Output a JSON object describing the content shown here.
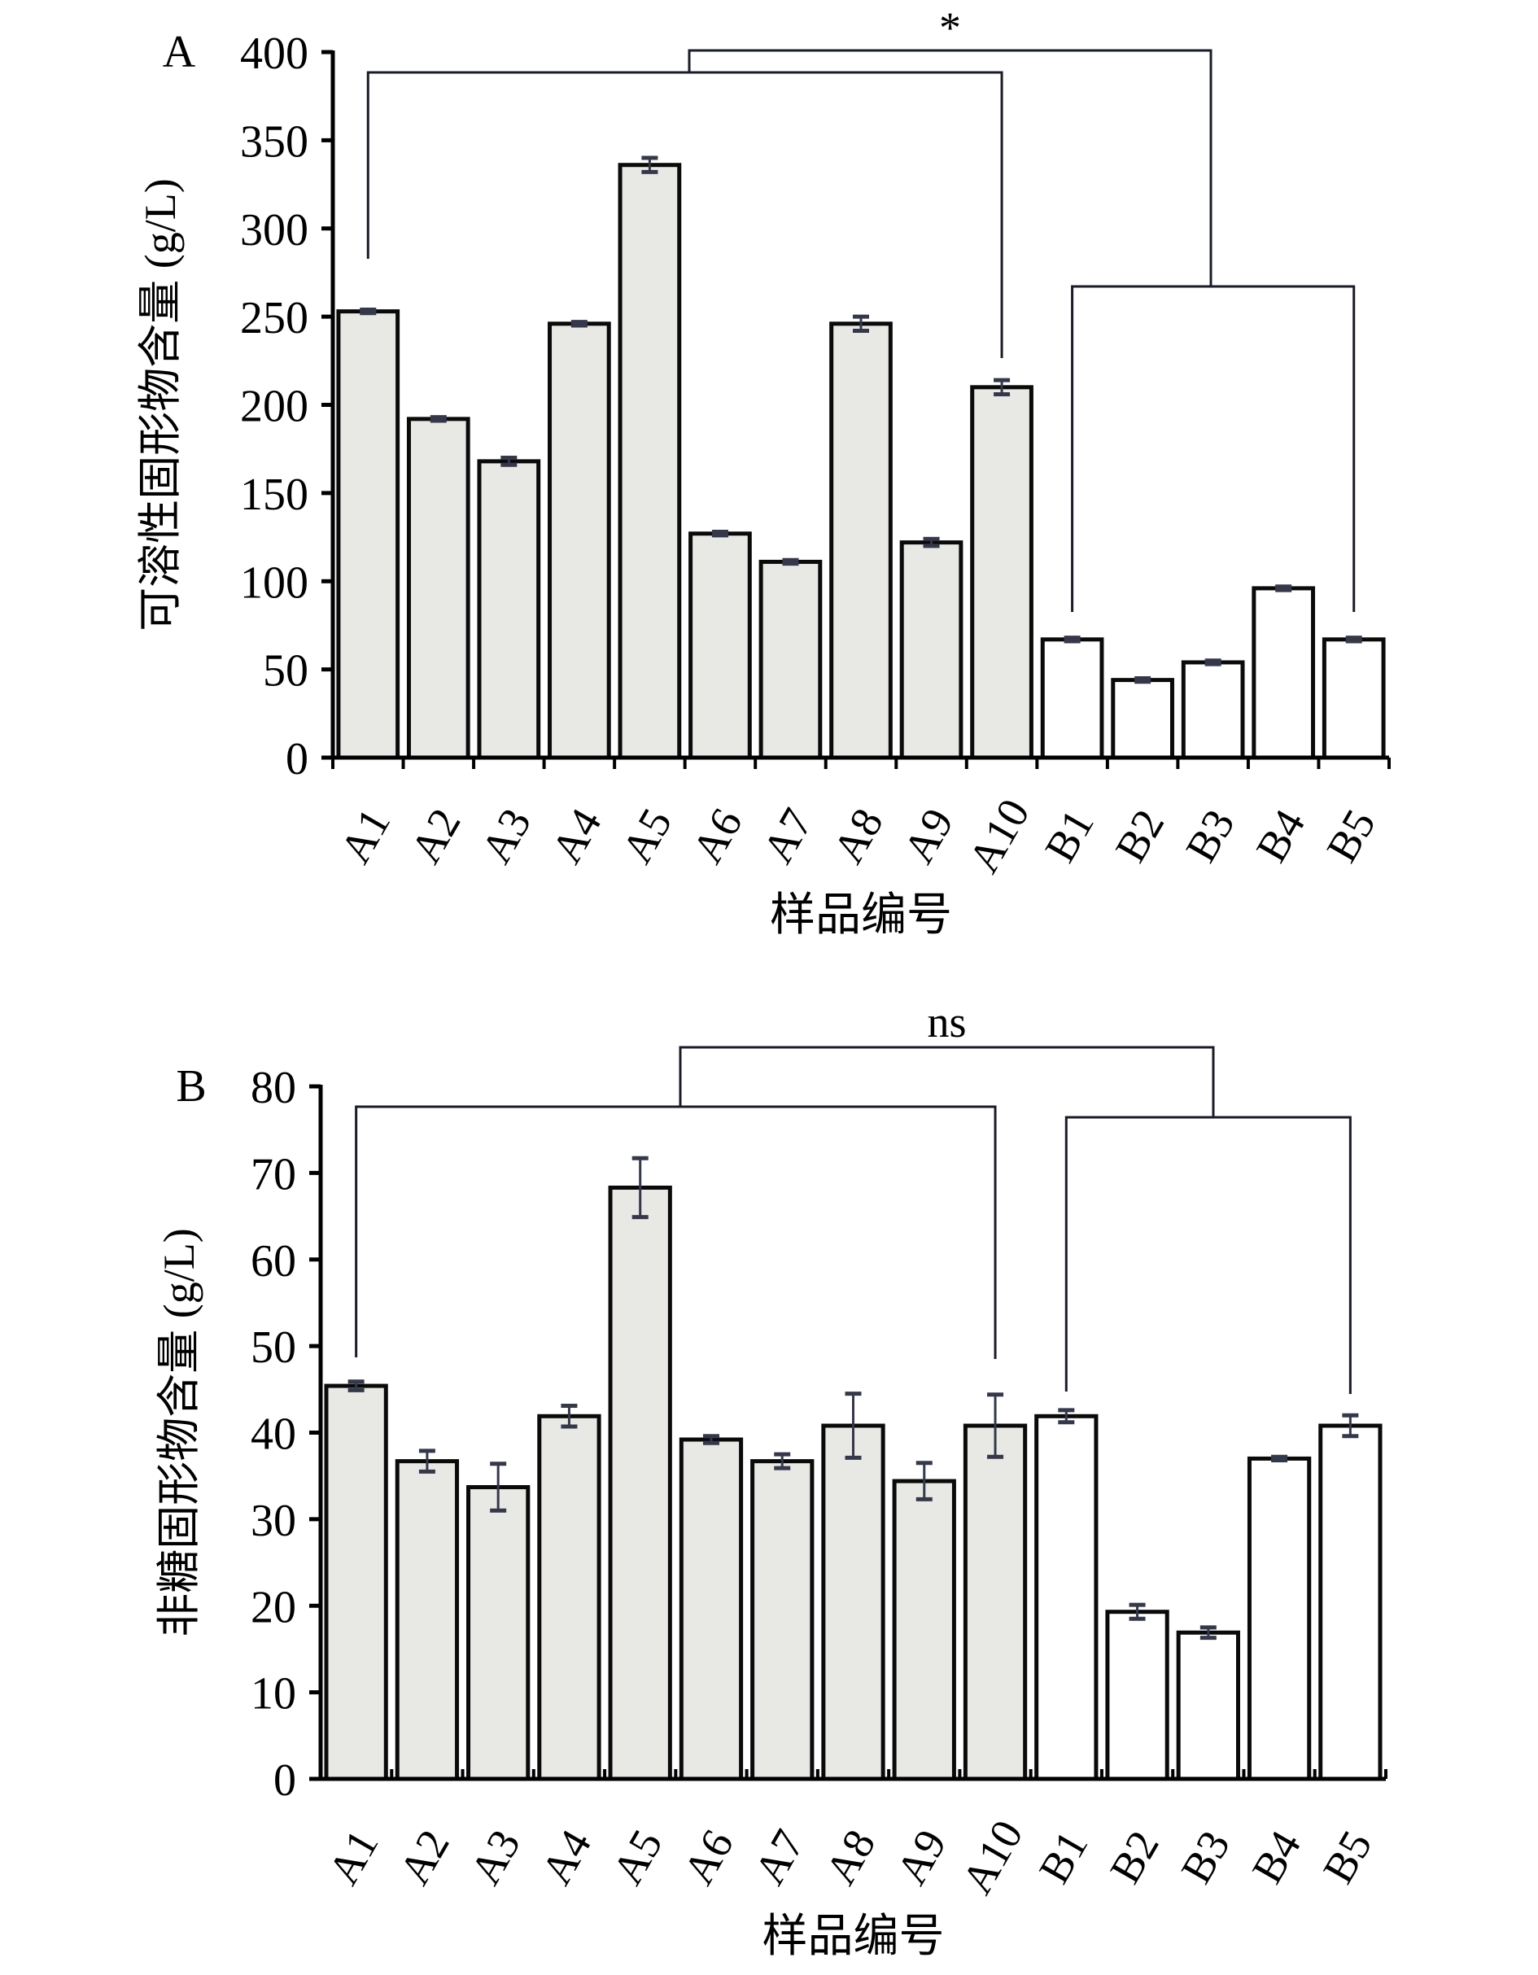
{
  "chart_data": [
    {
      "panel_label": "A",
      "type": "bar",
      "title": "",
      "xlabel": "样品编号",
      "ylabel": "可溶性固形物含量 (g/L)",
      "ylim": [
        0,
        400
      ],
      "yticks": [
        0,
        50,
        100,
        150,
        200,
        250,
        300,
        350,
        400
      ],
      "grid": false,
      "categories": [
        "A1",
        "A2",
        "A3",
        "A4",
        "A5",
        "A6",
        "A7",
        "A8",
        "A9",
        "A10",
        "B1",
        "B2",
        "B3",
        "B4",
        "B5"
      ],
      "values": [
        253,
        192,
        168,
        246,
        336,
        127,
        111,
        246,
        122,
        210,
        67,
        44,
        54,
        96,
        67
      ],
      "errors": [
        1,
        1,
        2,
        1,
        4,
        1,
        1,
        4,
        2,
        4,
        1,
        1,
        1,
        1,
        1
      ],
      "groups": [
        {
          "name": "A",
          "members": [
            "A1",
            "A2",
            "A3",
            "A4",
            "A5",
            "A6",
            "A7",
            "A8",
            "A9",
            "A10"
          ],
          "fill": "#e8e8e4"
        },
        {
          "name": "B",
          "members": [
            "B1",
            "B2",
            "B3",
            "B4",
            "B5"
          ],
          "fill": "#ffffff"
        }
      ],
      "significance": {
        "label": "*",
        "compare": [
          "A",
          "B"
        ]
      }
    },
    {
      "panel_label": "B",
      "type": "bar",
      "title": "",
      "xlabel": "样品编号",
      "ylabel": "非糖固形物含量 (g/L)",
      "ylim": [
        0,
        80
      ],
      "yticks": [
        0,
        10,
        20,
        30,
        40,
        50,
        60,
        70,
        80
      ],
      "grid": false,
      "categories": [
        "A1",
        "A2",
        "A3",
        "A4",
        "A5",
        "A6",
        "A7",
        "A8",
        "A9",
        "A10",
        "B1",
        "B2",
        "B3",
        "B4",
        "B5"
      ],
      "values": [
        45.4,
        36.7,
        33.7,
        41.9,
        68.3,
        39.2,
        36.7,
        40.8,
        34.4,
        40.8,
        41.9,
        19.3,
        16.9,
        37.0,
        40.8
      ],
      "errors": [
        0.5,
        1.2,
        2.7,
        1.2,
        3.4,
        0.4,
        0.8,
        3.7,
        2.1,
        3.6,
        0.7,
        0.8,
        0.6,
        0.2,
        1.2
      ],
      "groups": [
        {
          "name": "A",
          "members": [
            "A1",
            "A2",
            "A3",
            "A4",
            "A5",
            "A6",
            "A7",
            "A8",
            "A9",
            "A10"
          ],
          "fill": "#e8e8e4"
        },
        {
          "name": "B",
          "members": [
            "B1",
            "B2",
            "B3",
            "B4",
            "B5"
          ],
          "fill": "#ffffff"
        }
      ],
      "significance": {
        "label": "ns",
        "compare": [
          "A",
          "B"
        ]
      }
    }
  ],
  "colors": {
    "bar_stroke": "#0a0a0a",
    "group_a_fill": "#e8e8e4",
    "group_b_fill": "#ffffff",
    "error_bar": "#34384a",
    "bracket": "#1a1c28"
  }
}
